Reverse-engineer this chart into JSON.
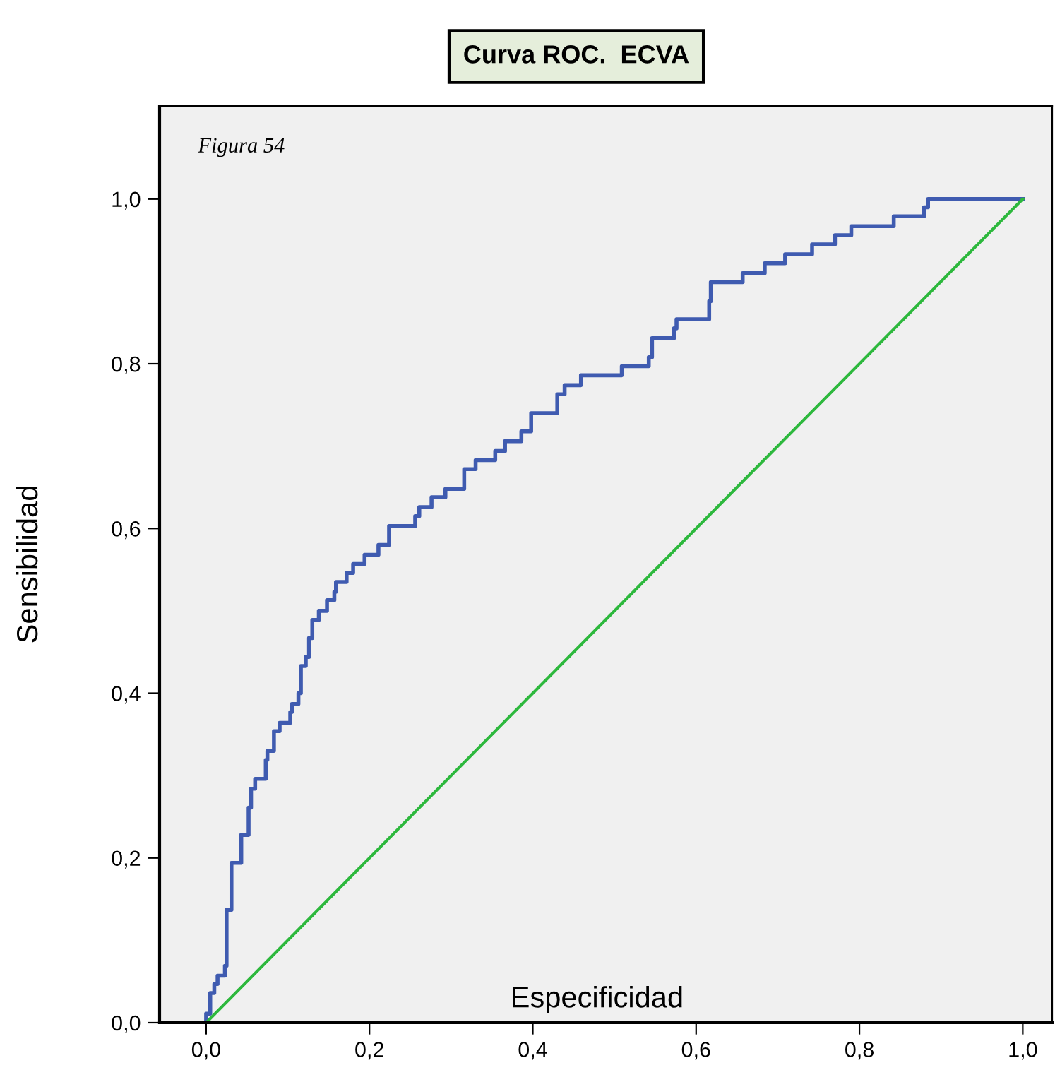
{
  "chart_data": {
    "type": "step",
    "title": "Curva ROC.  ECVA",
    "xlabel": "Especificidad",
    "ylabel": "Sensibilidad",
    "annotations": [
      "Figura 54"
    ],
    "xlim": [
      -0.057,
      1.036
    ],
    "ylim": [
      0,
      1.113
    ],
    "xticks": [
      {
        "value": 0,
        "label": "0,0"
      },
      {
        "value": 0.2,
        "label": "0,2"
      },
      {
        "value": 0.4,
        "label": "0,4"
      },
      {
        "value": 0.6,
        "label": "0,6"
      },
      {
        "value": 0.8,
        "label": "0,8"
      },
      {
        "value": 1,
        "label": "1,0"
      }
    ],
    "yticks": [
      {
        "value": 0,
        "label": "0,0"
      },
      {
        "value": 0.2,
        "label": "0,2"
      },
      {
        "value": 0.4,
        "label": "0,4"
      },
      {
        "value": 0.6,
        "label": "0,6"
      },
      {
        "value": 0.8,
        "label": "0,8"
      },
      {
        "value": 1,
        "label": "1,0"
      }
    ],
    "grid": false,
    "series": [
      {
        "color": "#3f5bb0",
        "x": [
          0,
          0,
          0.005,
          0.01,
          0.014,
          0.023,
          0.025,
          0.031,
          0.043,
          0.052,
          0.055,
          0.06,
          0.073,
          0.075,
          0.083,
          0.09,
          0.103,
          0.105,
          0.113,
          0.116,
          0.122,
          0.126,
          0.13,
          0.138,
          0.148,
          0.157,
          0.159,
          0.172,
          0.18,
          0.194,
          0.211,
          0.224,
          0.256,
          0.261,
          0.276,
          0.293,
          0.316,
          0.33,
          0.354,
          0.366,
          0.386,
          0.398,
          0.43,
          0.439,
          0.459,
          0.509,
          0.542,
          0.546,
          0.573,
          0.576,
          0.616,
          0.618,
          0.657,
          0.684,
          0.709,
          0.742,
          0.77,
          0.79,
          0.842,
          0.879,
          0.884,
          1
        ],
        "values": [
          0,
          0.011,
          0.036,
          0.047,
          0.057,
          0.069,
          0.137,
          0.194,
          0.228,
          0.261,
          0.284,
          0.296,
          0.319,
          0.33,
          0.354,
          0.364,
          0.377,
          0.387,
          0.4,
          0.433,
          0.444,
          0.467,
          0.489,
          0.5,
          0.513,
          0.523,
          0.535,
          0.546,
          0.557,
          0.568,
          0.58,
          0.603,
          0.615,
          0.626,
          0.638,
          0.648,
          0.672,
          0.683,
          0.694,
          0.706,
          0.718,
          0.74,
          0.763,
          0.774,
          0.786,
          0.797,
          0.808,
          0.831,
          0.843,
          0.854,
          0.876,
          0.899,
          0.91,
          0.922,
          0.933,
          0.945,
          0.956,
          0.967,
          0.979,
          0.99,
          1.0,
          1.0
        ]
      },
      {
        "type": "line",
        "color": "#2db83d",
        "x": [
          0,
          1
        ],
        "values": [
          0,
          1
        ]
      }
    ]
  }
}
